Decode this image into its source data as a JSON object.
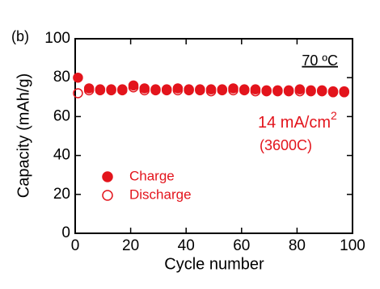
{
  "chart_data": {
    "type": "scatter",
    "panel_label": "(b)",
    "temperature": "70 ºC",
    "current": "14 mA/cm",
    "current_superscript": "2",
    "rate": "(3600C)",
    "x_label": "Cycle number",
    "y_label": "Capacity (mAh/g)",
    "x": [
      1,
      5,
      9,
      13,
      17,
      21,
      25,
      29,
      33,
      37,
      41,
      45,
      49,
      53,
      57,
      61,
      65,
      69,
      73,
      77,
      81,
      85,
      89,
      93,
      97
    ],
    "series": [
      {
        "name": "Charge",
        "color": "#e3141c",
        "filled": true,
        "values": [
          80,
          74.5,
          74,
          74,
          74,
          76,
          74.5,
          74,
          74,
          74.5,
          74,
          74,
          74,
          74,
          74.5,
          74,
          74,
          73.5,
          73.5,
          73.5,
          74,
          73.5,
          73.5,
          73,
          73
        ]
      },
      {
        "name": "Discharge",
        "color": "#e3141c",
        "filled": false,
        "values": [
          72,
          73.5,
          73.5,
          73.5,
          73.5,
          75,
          73.5,
          73.5,
          73.5,
          73.5,
          73.5,
          73.5,
          73,
          73.5,
          73.5,
          73.5,
          73,
          73,
          73,
          73,
          73,
          73,
          73,
          72.5,
          72.5
        ]
      }
    ],
    "xlim": [
      0,
      100
    ],
    "ylim": [
      0,
      100
    ],
    "xticks": [
      0,
      20,
      40,
      60,
      80,
      100
    ],
    "yticks": [
      0,
      20,
      40,
      60,
      80,
      100
    ]
  }
}
